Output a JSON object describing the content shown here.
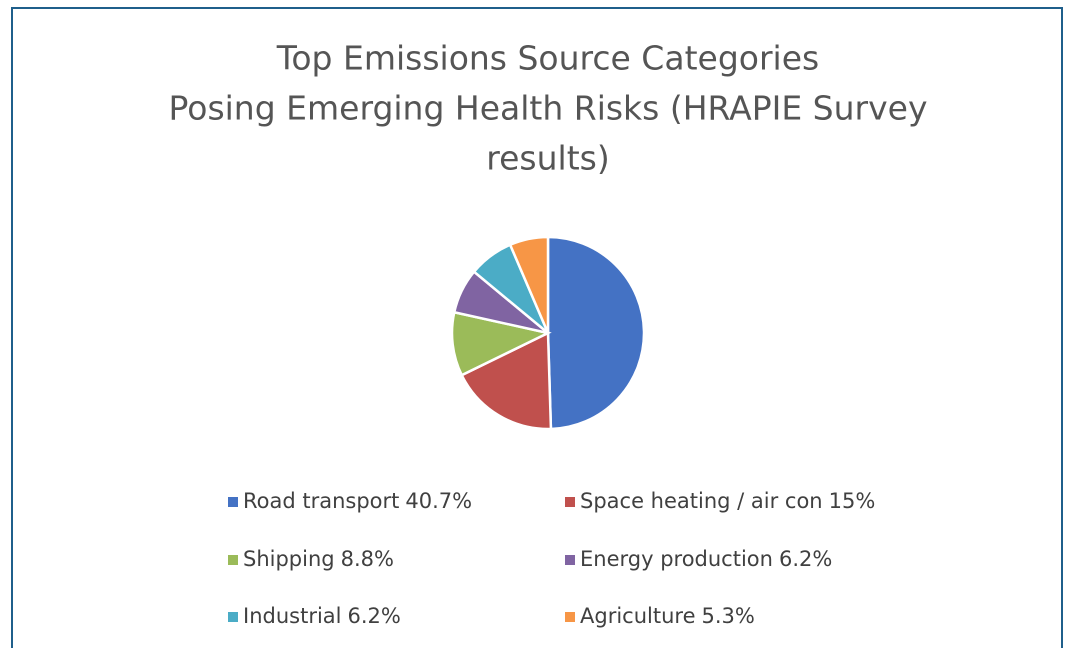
{
  "chart_data": {
    "type": "pie",
    "title": [
      "Top Emissions Source Categories",
      "Posing Emerging Health Risks (HRAPIE Survey",
      "results)"
    ],
    "categories": [
      "Road transport",
      "Space heating / air con",
      "Shipping",
      "Energy production",
      "Industrial",
      "Agriculture"
    ],
    "values": [
      40.7,
      15,
      8.8,
      6.2,
      6.2,
      5.3
    ],
    "value_labels": [
      "40.7%",
      "15%",
      "8.8%",
      "6.2%",
      "6.2%",
      "5.3%"
    ],
    "colors": [
      "#4472c4",
      "#c0504d",
      "#9bbb59",
      "#8064a2",
      "#4bacc6",
      "#f79646"
    ],
    "legend": "bottom"
  }
}
